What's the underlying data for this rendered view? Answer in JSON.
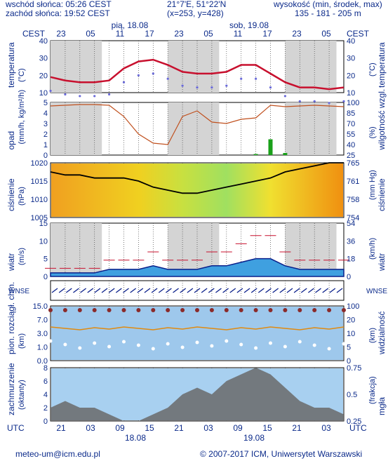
{
  "header": {
    "sunrise": "wschód słońca: 05:26 CEST",
    "sunset": "zachód słońca: 19:52 CEST",
    "coords": "21°7'E, 51°22'N",
    "grid": "(x=253, y=428)",
    "elevation_title": "wysokość (min, środek, max)",
    "elevation_values": "135 - 181 - 205 m",
    "day1": "pią, 18.08",
    "day2": "sob, 19.08",
    "tz_top": "CEST",
    "tz_bottom": "UTC",
    "bottom_date1": "18.08",
    "bottom_date2": "19.08"
  },
  "axes": {
    "top_hours": [
      "23",
      "05",
      "11",
      "17",
      "23",
      "05",
      "11",
      "17",
      "23",
      "05"
    ],
    "bottom_hours": [
      "21",
      "03",
      "09",
      "15",
      "21",
      "03",
      "09",
      "15",
      "21",
      "03"
    ]
  },
  "panels": {
    "temperature": {
      "left": "temperatura",
      "left_unit": "(°C)",
      "right": "temperatura",
      "right_unit": "(°C)",
      "ticks": [
        "40",
        "30",
        "20",
        "10"
      ],
      "right_ticks": [
        "40",
        "30",
        "20",
        "10"
      ]
    },
    "precip": {
      "left": "opad",
      "left_unit": "(mm/h, kg/m²/h)",
      "right": "wilgotność wzgl.",
      "right_unit": "(%)",
      "ticks": [
        "5",
        "4",
        "3",
        "2",
        "1",
        "0"
      ],
      "right_ticks": [
        "100",
        "85",
        "70",
        "55",
        "40",
        "25"
      ]
    },
    "pressure": {
      "left": "ciśnienie",
      "left_unit": "(hPa)",
      "right": "ciśnienie",
      "right_unit": "(mm Hg)",
      "ticks": [
        "1020",
        "1015",
        "1010",
        "1005"
      ],
      "right_ticks": [
        "765",
        "761",
        "758",
        "754"
      ]
    },
    "wind": {
      "left": "wiatr",
      "left_unit": "(m/s)",
      "right": "wiatr",
      "right_unit": "(km/h)",
      "ticks": [
        "15",
        "10",
        "5",
        "0"
      ],
      "right_ticks": [
        "54",
        "36",
        "18",
        "0"
      ]
    },
    "direction": {
      "left_label": "WNSE",
      "right_label": "WNSE"
    },
    "visibility": {
      "left": "pion. rozciągł. chm.",
      "left_unit": "(km)",
      "right": "widzialność",
      "right_unit": "(km)",
      "ticks": [
        "15.0",
        "7.0",
        "3.0",
        "1.0",
        "0.0"
      ],
      "right_ticks": [
        "100",
        "20",
        "10",
        "5",
        "0"
      ]
    },
    "clouds": {
      "left": "zachmurzenie",
      "left_unit": "(oktanty)",
      "right": "mgła",
      "right_unit": "(frakcja)",
      "ticks": [
        "8",
        "6",
        "4",
        "2",
        "0"
      ],
      "right_ticks": [
        "0.75",
        "0.5",
        "0.25"
      ]
    }
  },
  "footer": {
    "email": "meteo-um@icm.edu.pl",
    "copyright": "© 2007-2017 ICM, Uniwersytet Warszawski"
  },
  "chart_data": {
    "type": "line",
    "x_hours_utc": [
      18,
      21,
      0,
      3,
      6,
      9,
      12,
      15,
      18,
      21,
      0,
      3,
      6,
      9,
      12,
      15,
      18,
      21,
      0,
      3,
      6
    ],
    "series": [
      {
        "name": "temperatura",
        "values": [
          19,
          17,
          16,
          16,
          17,
          24,
          28,
          29,
          26,
          22,
          21,
          21,
          22,
          26,
          26,
          21,
          16,
          13,
          13,
          12,
          13
        ]
      },
      {
        "name": "wiatr",
        "values": [
          1,
          1,
          1,
          1,
          2,
          2,
          2,
          3,
          2,
          2,
          2,
          3,
          3,
          4,
          5,
          5,
          3,
          2,
          2,
          2,
          2
        ]
      },
      {
        "name": "ciśnienie",
        "values": [
          1019,
          1018,
          1018,
          1017,
          1017,
          1017,
          1016,
          1014,
          1013,
          1012,
          1012,
          1013,
          1014,
          1015,
          1016,
          1017,
          1019,
          1020,
          1021,
          1022,
          1022
        ]
      },
      {
        "name": "wilgotność wzgl.",
        "values": [
          95,
          96,
          97,
          97,
          96,
          80,
          55,
          42,
          40,
          80,
          88,
          72,
          70,
          76,
          78,
          96,
          94,
          95,
          96,
          95,
          94
        ]
      },
      {
        "name": "opad",
        "values": [
          0,
          0,
          0,
          0,
          0,
          0,
          0,
          0,
          0,
          0,
          0,
          0,
          0,
          0,
          0.1,
          1.5,
          0.2,
          0,
          0,
          0,
          0
        ]
      }
    ],
    "colors": {
      "temp_line": "#c8102e",
      "humidity_line": "#c0501e",
      "pressure_line": "#000000",
      "wind_area": "#1f6fd0",
      "precip_bar": "#1aa01a",
      "night_band": "#cccccc"
    }
  }
}
